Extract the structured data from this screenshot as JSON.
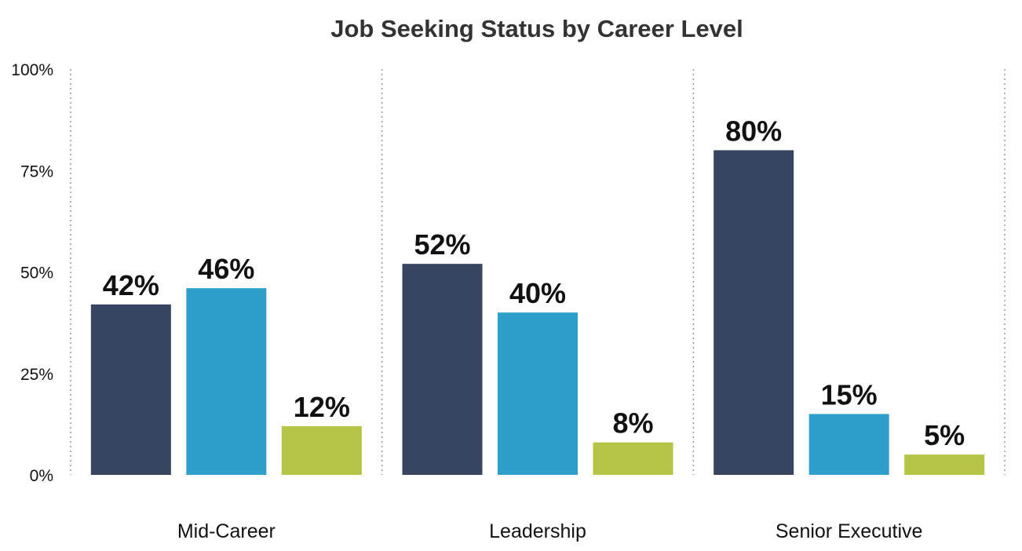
{
  "chart_data": {
    "type": "bar",
    "title": "Job Seeking Status by Career Level",
    "categories": [
      "Mid-Career",
      "Leadership",
      "Senior Executive"
    ],
    "series": [
      {
        "values": [
          42,
          52,
          80
        ],
        "color": "#374561"
      },
      {
        "values": [
          46,
          40,
          15
        ],
        "color": "#2e9ecb"
      },
      {
        "values": [
          12,
          8,
          5
        ],
        "color": "#b5c444"
      }
    ],
    "data_labels": [
      [
        "42%",
        "52%",
        "80%"
      ],
      [
        "46%",
        "40%",
        "15%"
      ],
      [
        "12%",
        "8%",
        "5%"
      ]
    ],
    "yticks": [
      "0%",
      "25%",
      "50%",
      "75%",
      "100%"
    ],
    "ytick_values": [
      0,
      25,
      50,
      75,
      100
    ],
    "ylim": [
      0,
      100
    ],
    "xlabel": "",
    "ylabel": "",
    "grid": "vertical dotted separators between categories",
    "legend": "none"
  }
}
